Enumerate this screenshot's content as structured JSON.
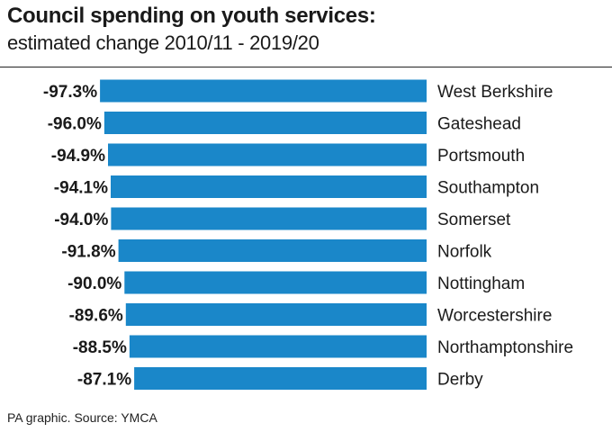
{
  "title": "Council spending on youth services:",
  "subtitle": "estimated change 2010/11 - 2019/20",
  "source": "PA graphic. Source: YMCA",
  "colors": {
    "bar": "#1a87c9"
  },
  "chart_data": {
    "type": "bar",
    "orientation": "horizontal",
    "title": "Council spending on youth services:",
    "subtitle": "estimated change 2010/11 - 2019/20",
    "categories": [
      "West Berkshire",
      "Gateshead",
      "Portsmouth",
      "Southampton",
      "Somerset",
      "Norfolk",
      "Nottingham",
      "Worcestershire",
      "Northamptonshire",
      "Derby"
    ],
    "values": [
      -97.3,
      -96.0,
      -94.9,
      -94.1,
      -94.0,
      -91.8,
      -90.0,
      -89.6,
      -88.5,
      -87.1
    ],
    "value_labels": [
      "-97.3%",
      "-96.0%",
      "-94.9%",
      "-94.1%",
      "-94.0%",
      "-91.8%",
      "-90.0%",
      "-89.6%",
      "-88.5%",
      "-87.1%"
    ],
    "unit": "%",
    "xlim": [
      -100,
      0
    ],
    "grid": false,
    "legend": "none"
  }
}
